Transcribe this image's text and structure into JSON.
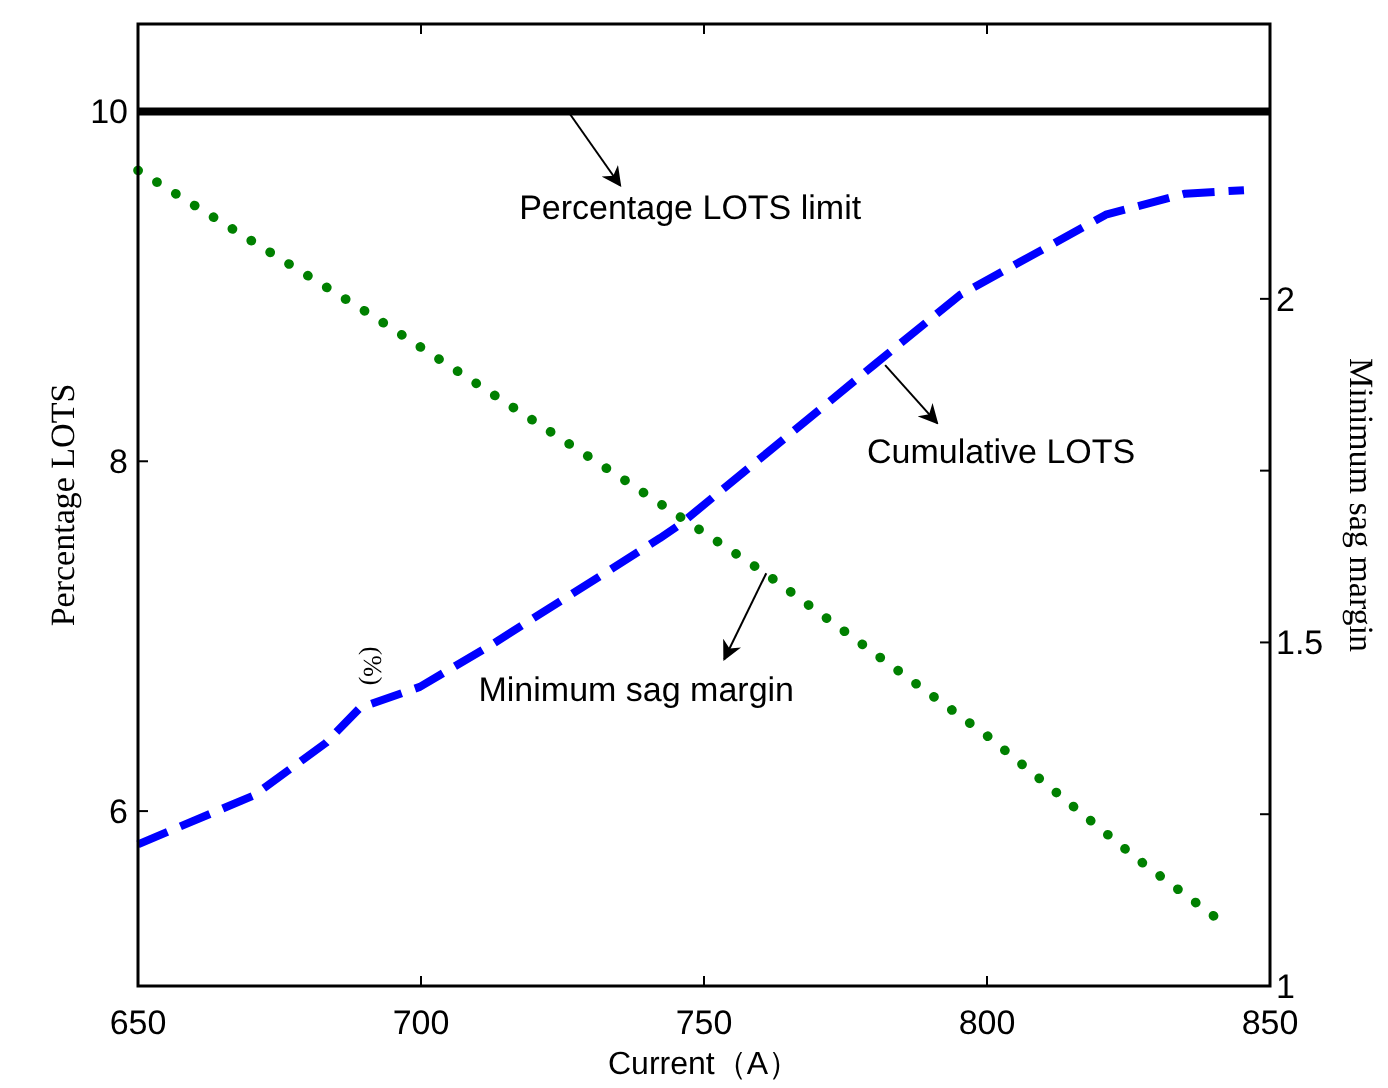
{
  "chart_data": {
    "type": "line",
    "xlabel": "Current（A）",
    "ylabel": "Percentage LOTS",
    "y2label": "Minimum sag margin",
    "series": [
      {
        "color": "#000000",
        "line_style": "solid",
        "x": [
          650,
          850
        ],
        "values": [
          10,
          10
        ]
      },
      {
        "color": "#0000ff",
        "line_style": "dashed",
        "x": [
          650,
          670.5,
          683.2,
          689.2,
          699.8,
          712.9,
          742.2,
          745.8,
          780,
          795.2,
          821,
          835,
          845.4
        ],
        "values": [
          5.81,
          6.09,
          6.39,
          6.59,
          6.71,
          6.96,
          7.56,
          7.64,
          8.55,
          8.95,
          9.41,
          9.53,
          9.55
        ]
      },
      {
        "color": "#008000",
        "line_style": "dotted",
        "axis": "y2",
        "x": [
          650,
          691.7,
          736.2,
          760.6,
          800.2,
          826.7,
          842
        ],
        "values": [
          2.187,
          1.974,
          1.735,
          1.602,
          1.363,
          1.184,
          1.09
        ]
      }
    ],
    "annotations": [
      {
        "text": "Percentage LOTS limit",
        "x": 726,
        "y": 10
      },
      {
        "text": "Cumulative LOTS",
        "x": 782,
        "y": 8.55
      },
      {
        "text": "Minimum sag margin",
        "x": 761,
        "y": 7.36
      },
      "(%)"
    ],
    "xlim": [
      650,
      850
    ],
    "xticks": [
      650,
      700,
      750,
      800,
      850
    ],
    "ylim": [
      5,
      10.5
    ],
    "yticks": [
      6,
      8,
      10
    ],
    "y2lim": [
      1,
      2.4
    ],
    "y2ticks": [
      1,
      {
        "value": 1.25,
        "label": null
      },
      1.5,
      {
        "value": 1.75,
        "label": null
      },
      2
    ],
    "grid": false,
    "marker": "none"
  }
}
